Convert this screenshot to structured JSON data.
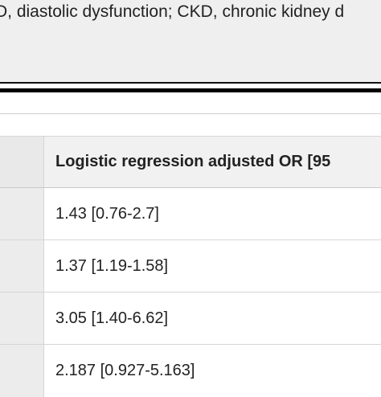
{
  "caption": {
    "text": "D, diastolic dysfunction; CKD, chronic kidney d"
  },
  "table": {
    "header": "Logistic regression adjusted OR [95",
    "rows": [
      {
        "value": "1.43 [0.76-2.7]"
      },
      {
        "value": "1.37 [1.19-1.58]"
      },
      {
        "value": "3.05 [1.40-6.62]"
      },
      {
        "value": "2.187 [0.927-5.163]"
      }
    ]
  }
}
